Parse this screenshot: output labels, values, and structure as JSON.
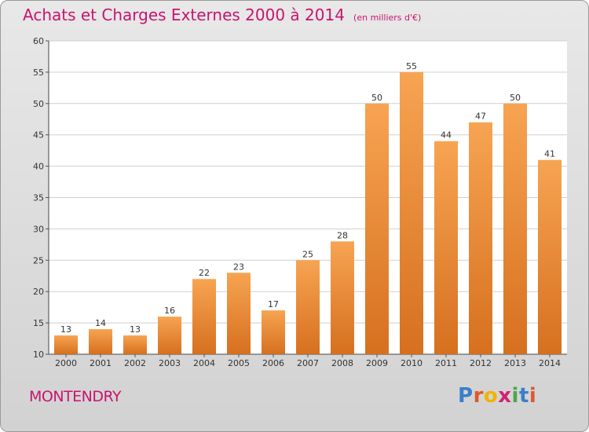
{
  "header": {
    "title": "Achats et Charges Externes 2000 à 2014",
    "unit": "(en milliers d'€)"
  },
  "footer": {
    "commune": "MONTENDRY",
    "logo": "Proxiti"
  },
  "colors": {
    "title": "#c8146e",
    "bar_light": "#f7a452",
    "bar_dark": "#d6701f",
    "logo_letters": [
      "#3a7fc9",
      "#e0582a",
      "#f0b400",
      "#d1226e",
      "#4aa84a",
      "#3a7fc9",
      "#e0582a"
    ]
  },
  "chart_data": {
    "type": "bar",
    "title": "Achats et Charges Externes 2000 à 2014",
    "subtitle": "(en milliers d'€)",
    "categories": [
      "2000",
      "2001",
      "2002",
      "2003",
      "2004",
      "2005",
      "2006",
      "2007",
      "2008",
      "2009",
      "2010",
      "2011",
      "2012",
      "2013",
      "2014"
    ],
    "values": [
      13,
      14,
      13,
      16,
      22,
      23,
      17,
      25,
      28,
      50,
      55,
      44,
      47,
      50,
      41
    ],
    "ylim": [
      10,
      60
    ],
    "yticks": [
      10,
      15,
      20,
      25,
      30,
      35,
      40,
      45,
      50,
      55,
      60
    ],
    "grid": "horizontal",
    "data_labels": true
  }
}
